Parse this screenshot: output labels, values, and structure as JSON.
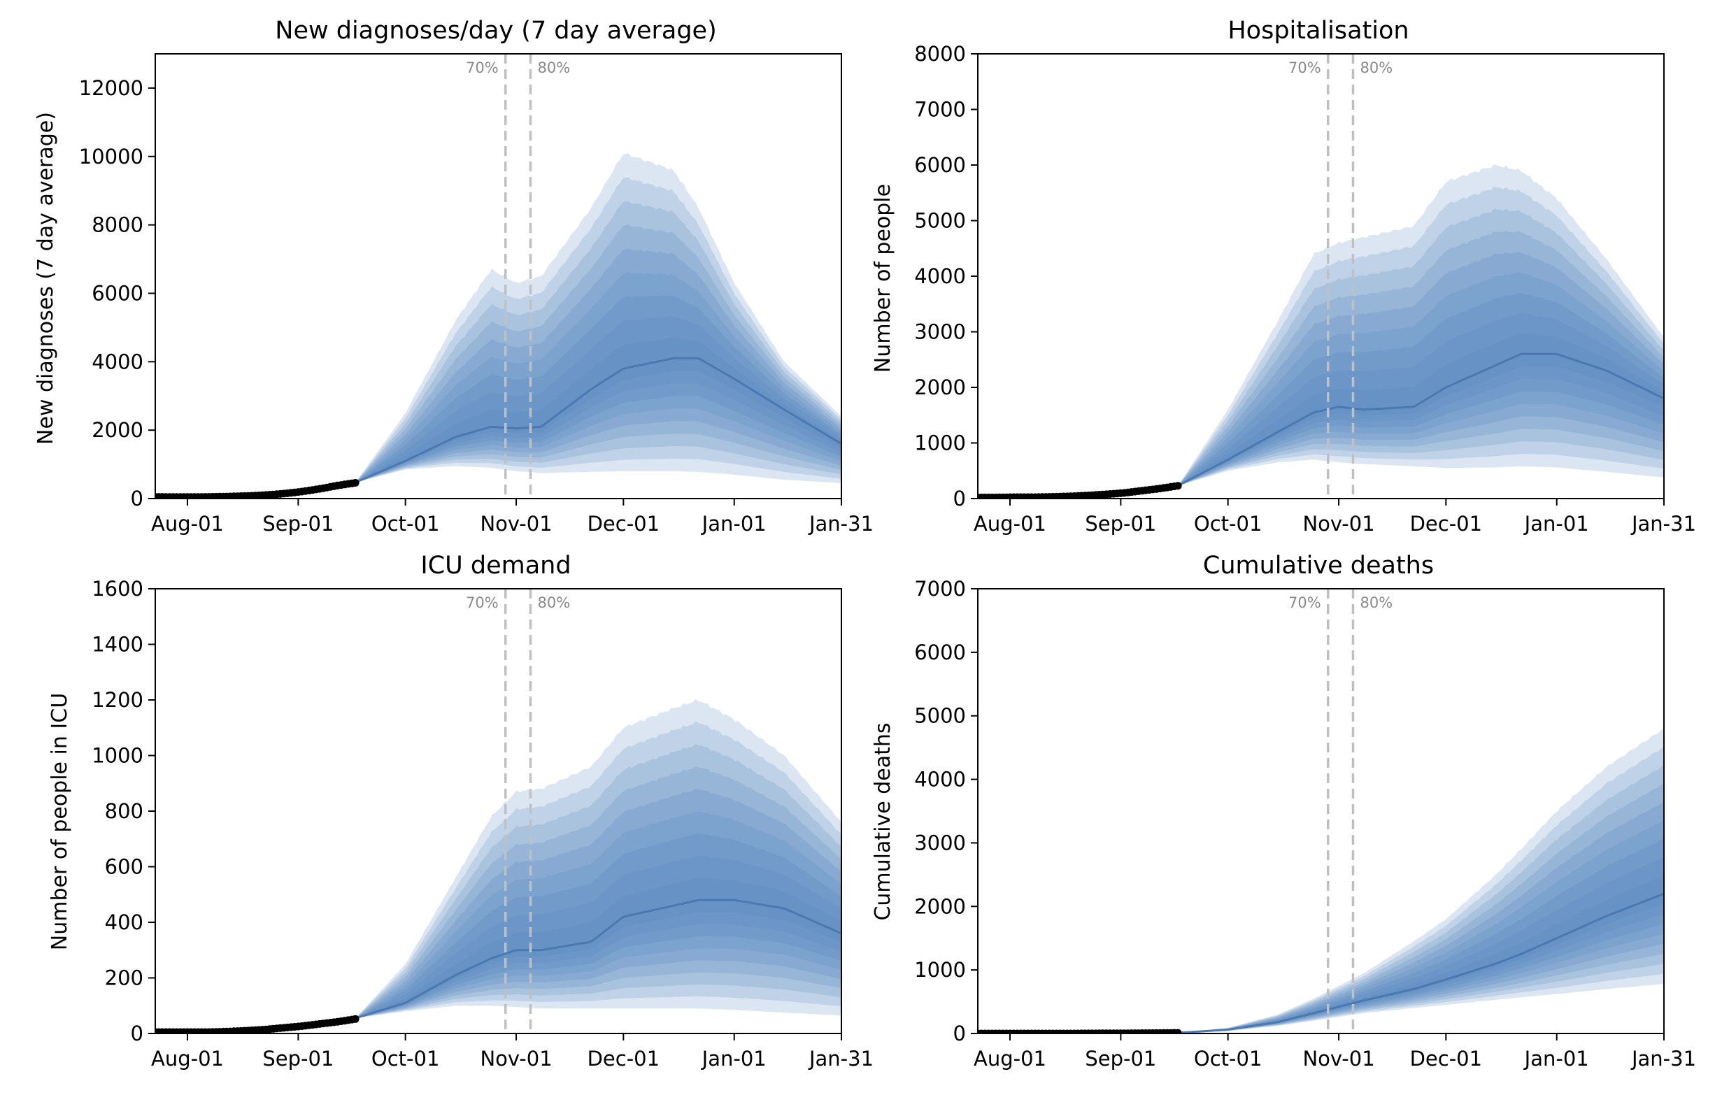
{
  "figure": {
    "band_color": "#4f81bd",
    "median_color": "#4a78b0",
    "observed_color": "#000000",
    "vline_color": "#c0c0c0",
    "vline_labels": [
      "70%",
      "80%"
    ],
    "vline_dates": [
      "2021-10-29",
      "2021-11-05"
    ]
  },
  "chart_data": [
    {
      "type": "area",
      "title": "New diagnoses/day (7 day average)",
      "xlabel": "",
      "ylabel": "New diagnoses (7 day average)",
      "xlim": [
        "2021-07-23",
        "2022-01-31"
      ],
      "ylim": [
        0,
        13000
      ],
      "yticks": [
        0,
        2000,
        4000,
        6000,
        8000,
        10000,
        12000
      ],
      "xtick_labels": [
        "Aug-01",
        "Sep-01",
        "Oct-01",
        "Nov-01",
        "Dec-01",
        "Jan-01",
        "Jan-31"
      ],
      "observed": {
        "start": "2021-07-23",
        "end": "2021-09-17",
        "values": [
          50,
          45,
          45,
          50,
          60,
          75,
          100,
          140,
          200,
          280,
          380,
          460
        ]
      },
      "projection": {
        "dates": [
          "2021-09-17",
          "2021-10-01",
          "2021-10-15",
          "2021-10-25",
          "2021-11-01",
          "2021-11-08",
          "2021-11-22",
          "2021-12-01",
          "2021-12-15",
          "2021-12-22",
          "2022-01-01",
          "2022-01-15",
          "2022-01-31"
        ],
        "median": [
          470,
          1100,
          1800,
          2100,
          2050,
          2100,
          3200,
          3800,
          4100,
          4100,
          3500,
          2600,
          1600
        ],
        "upper": [
          470,
          2500,
          5200,
          6700,
          6300,
          6500,
          8500,
          10100,
          9600,
          8500,
          6300,
          4000,
          2400
        ],
        "lower": [
          470,
          850,
          950,
          900,
          800,
          750,
          780,
          800,
          800,
          780,
          700,
          550,
          450
        ]
      }
    },
    {
      "type": "area",
      "title": "Hospitalisation",
      "xlabel": "",
      "ylabel": "Number of people",
      "xlim": [
        "2021-07-23",
        "2022-01-31"
      ],
      "ylim": [
        0,
        8000
      ],
      "yticks": [
        0,
        1000,
        2000,
        3000,
        4000,
        5000,
        6000,
        7000,
        8000
      ],
      "xtick_labels": [
        "Aug-01",
        "Sep-01",
        "Oct-01",
        "Nov-01",
        "Dec-01",
        "Jan-01",
        "Jan-31"
      ],
      "observed": {
        "start": "2021-07-23",
        "end": "2021-09-17",
        "values": [
          20,
          20,
          25,
          25,
          30,
          40,
          55,
          75,
          100,
          140,
          180,
          230
        ]
      },
      "projection": {
        "dates": [
          "2021-09-17",
          "2021-10-01",
          "2021-10-15",
          "2021-10-25",
          "2021-11-01",
          "2021-11-08",
          "2021-11-22",
          "2021-12-01",
          "2021-12-15",
          "2021-12-22",
          "2022-01-01",
          "2022-01-15",
          "2022-01-31"
        ],
        "median": [
          230,
          700,
          1200,
          1550,
          1650,
          1600,
          1650,
          2000,
          2400,
          2600,
          2600,
          2300,
          1800
        ],
        "upper": [
          230,
          1600,
          3200,
          4400,
          4600,
          4700,
          4900,
          5700,
          6000,
          5900,
          5400,
          4300,
          2900
        ],
        "lower": [
          230,
          500,
          650,
          700,
          650,
          620,
          580,
          550,
          560,
          580,
          560,
          480,
          380
        ]
      }
    },
    {
      "type": "area",
      "title": "ICU demand",
      "xlabel": "",
      "ylabel": "Number of people in ICU",
      "xlim": [
        "2021-07-23",
        "2022-01-31"
      ],
      "ylim": [
        0,
        1600
      ],
      "yticks": [
        0,
        200,
        400,
        600,
        800,
        1000,
        1200,
        1400,
        1600
      ],
      "xtick_labels": [
        "Aug-01",
        "Sep-01",
        "Oct-01",
        "Nov-01",
        "Dec-01",
        "Jan-01",
        "Jan-31"
      ],
      "observed": {
        "start": "2021-07-23",
        "end": "2021-09-17",
        "values": [
          5,
          5,
          5,
          5,
          7,
          10,
          14,
          20,
          26,
          34,
          42,
          52
        ]
      },
      "projection": {
        "dates": [
          "2021-09-17",
          "2021-10-01",
          "2021-10-15",
          "2021-10-25",
          "2021-11-01",
          "2021-11-08",
          "2021-11-22",
          "2021-12-01",
          "2021-12-15",
          "2021-12-22",
          "2022-01-01",
          "2022-01-15",
          "2022-01-31"
        ],
        "median": [
          55,
          110,
          210,
          270,
          300,
          300,
          330,
          420,
          460,
          480,
          480,
          450,
          360
        ],
        "upper": [
          55,
          250,
          560,
          780,
          870,
          880,
          960,
          1100,
          1170,
          1200,
          1130,
          1000,
          760
        ],
        "lower": [
          55,
          80,
          100,
          100,
          95,
          90,
          90,
          90,
          90,
          90,
          85,
          75,
          65
        ]
      }
    },
    {
      "type": "area",
      "title": "Cumulative deaths",
      "xlabel": "",
      "ylabel": "Cumulative deaths",
      "xlim": [
        "2021-07-23",
        "2022-01-31"
      ],
      "ylim": [
        0,
        7000
      ],
      "yticks": [
        0,
        1000,
        2000,
        3000,
        4000,
        5000,
        6000,
        7000
      ],
      "xtick_labels": [
        "Aug-01",
        "Sep-01",
        "Oct-01",
        "Nov-01",
        "Dec-01",
        "Jan-01",
        "Jan-31"
      ],
      "observed": {
        "start": "2021-07-23",
        "end": "2021-09-17",
        "values": [
          0,
          0,
          0,
          0,
          0,
          0,
          1,
          2,
          3,
          5,
          7,
          10
        ]
      },
      "projection": {
        "dates": [
          "2021-09-17",
          "2021-10-01",
          "2021-10-15",
          "2021-10-25",
          "2021-11-01",
          "2021-11-08",
          "2021-11-22",
          "2021-12-01",
          "2021-12-15",
          "2021-12-22",
          "2022-01-01",
          "2022-01-15",
          "2022-01-31"
        ],
        "median": [
          10,
          60,
          180,
          320,
          420,
          520,
          700,
          850,
          1100,
          1250,
          1500,
          1850,
          2200
        ],
        "upper": [
          10,
          90,
          300,
          550,
          750,
          950,
          1450,
          1800,
          2500,
          2900,
          3500,
          4200,
          4800
        ],
        "lower": [
          10,
          40,
          120,
          200,
          260,
          320,
          400,
          450,
          530,
          570,
          620,
          700,
          780
        ]
      }
    }
  ]
}
